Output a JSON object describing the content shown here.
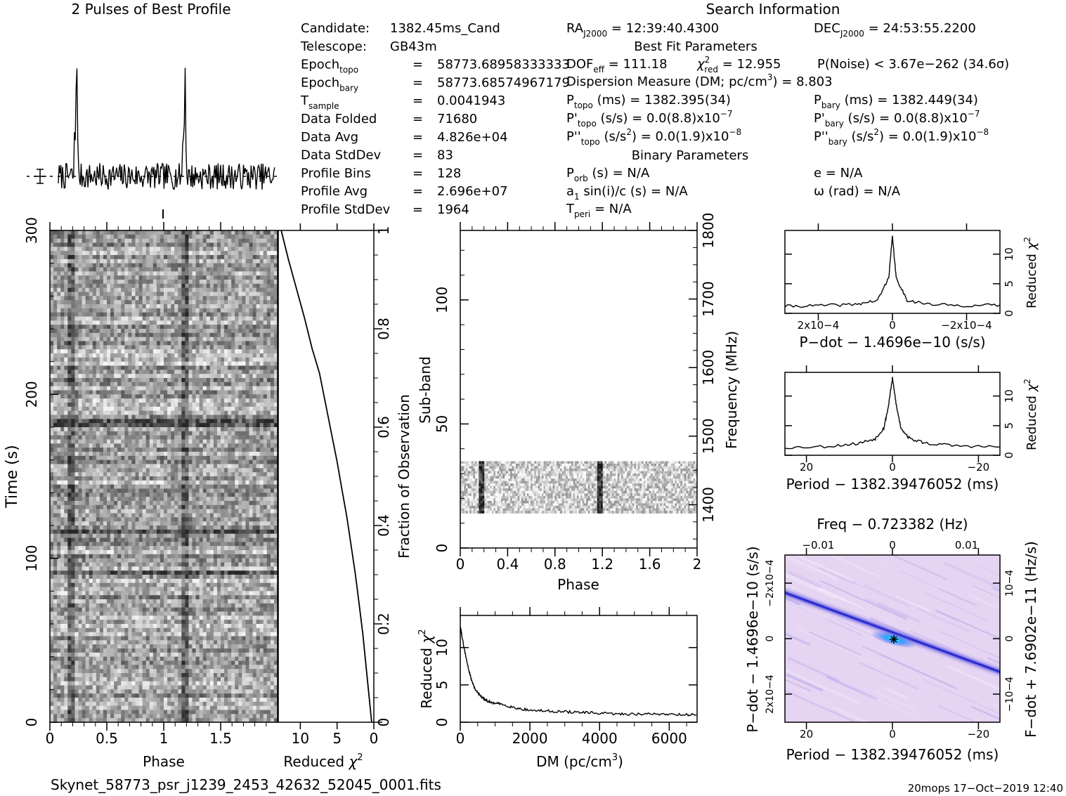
{
  "header": {
    "profile_title": "2 Pulses of Best Profile",
    "search_title": "Search Information",
    "best_fit_title": "Best Fit Parameters",
    "binary_title": "Binary Parameters"
  },
  "info_left": [
    {
      "key": "Candidate:",
      "sub": "",
      "eq": "",
      "val": "1382.45ms_Cand"
    },
    {
      "key": "Telescope:",
      "sub": "",
      "eq": "",
      "val": "GB43m"
    },
    {
      "key": "Epoch",
      "sub": "topo",
      "eq": "=",
      "val": "58773.68958333333"
    },
    {
      "key": "Epoch",
      "sub": "bary",
      "eq": "=",
      "val": "58773.68574967179"
    },
    {
      "key": "T",
      "sub": "sample",
      "eq": "=",
      "val": "0.0041943"
    },
    {
      "key": "Data Folded",
      "sub": "",
      "eq": "=",
      "val": "71680"
    },
    {
      "key": "Data Avg",
      "sub": "",
      "eq": "=",
      "val": "4.826e+04"
    },
    {
      "key": "Data StdDev",
      "sub": "",
      "eq": "=",
      "val": "83"
    },
    {
      "key": "Profile Bins",
      "sub": "",
      "eq": "=",
      "val": "128"
    },
    {
      "key": "Profile Avg",
      "sub": "",
      "eq": "=",
      "val": "2.696e+07"
    },
    {
      "key": "Profile StdDev",
      "sub": "",
      "eq": "=",
      "val": "1964"
    }
  ],
  "info_mid": {
    "ra": {
      "key": "RA",
      "sub": "J2000",
      "val": "= 12:39:40.4300"
    },
    "dof": {
      "key": "DOF",
      "sub": "eff",
      "val": "= 111.18"
    },
    "chi": {
      "sym": "χ",
      "sup": "2",
      "sub": "red",
      "val": "= 12.955"
    },
    "pnoise": "P(Noise) < 3.67e−262   (34.6σ)",
    "dm": {
      "text": "Dispersion Measure (DM; pc/cm",
      "sup": "3",
      "tail": ") = 8.803"
    },
    "ptopo": {
      "key": "P",
      "sub": "topo",
      "val": "(ms) =  1382.395(34)"
    },
    "pdtopo": {
      "key": "P'",
      "sub": "topo",
      "val": "(s/s) = 0.0(8.8)x10",
      "exp": "−7"
    },
    "pddtopo": {
      "key": "P''",
      "sub": "topo",
      "val": "(s/s",
      "sup": "2",
      "tail": ") = 0.0(1.9)x10",
      "exp": "−8"
    },
    "porb": {
      "key": "P",
      "sub": "orb",
      "val": "(s) = N/A"
    },
    "asini": {
      "key": "a",
      "sub": "1",
      "val": "sin(i)/c (s) = N/A"
    },
    "tperi": {
      "key": "T",
      "sub": "peri",
      "val": "= N/A"
    }
  },
  "info_right": {
    "dec": {
      "key": "DEC",
      "sub": "J2000",
      "val": "= 24:53:55.2200"
    },
    "pbary": {
      "key": "P",
      "sub": "bary",
      "val": "(ms) =  1382.449(34)"
    },
    "pdbary": {
      "key": "P'",
      "sub": "bary",
      "val": "(s/s) = 0.0(8.8)x10",
      "exp": "−7"
    },
    "pddbary": {
      "key": "P''",
      "sub": "bary",
      "val": "(s/s",
      "sup": "2",
      "tail": ") = 0.0(1.9)x10",
      "exp": "−8"
    },
    "e": "e = N/A",
    "omega": "ω (rad) = N/A"
  },
  "footer": {
    "filename": "Skynet_58773_psr_j1239_2453_42632_52045_0001.fits",
    "stamp": "20mops 17−Oct−2019 12:40"
  },
  "colors": {
    "ink": "#000000",
    "greyscale_dark": "#1a1a1a",
    "greyscale_light": "#e6e6e6",
    "ppdot_low": "#e6d2f2",
    "ppdot_mid": "#5a5ae6",
    "ppdot_peak": "#00ffff"
  },
  "chart_data": [
    {
      "type": "line",
      "id": "profile",
      "title": "2 Pulses of Best Profile",
      "xlabel": "",
      "ylabel": "",
      "x_range": [
        0,
        2
      ],
      "peaks_phase": [
        0.17,
        1.17
      ],
      "peak_relative_height": 1.0,
      "baseline": 0.0,
      "noise_rms": 0.03
    },
    {
      "type": "heatmap",
      "id": "time-phase",
      "xlabel": "Phase",
      "ylabel": "Time (s)",
      "x_ticks": [
        "0",
        "0.5",
        "1",
        "1.5"
      ],
      "x_range": [
        0,
        2
      ],
      "y_ticks": [
        "0",
        "100",
        "200",
        "300"
      ],
      "y_range": [
        0,
        300
      ],
      "pulse_phase": [
        0.17,
        1.17
      ]
    },
    {
      "type": "line",
      "id": "time-chi2",
      "xlabel": "Reduced χ2",
      "ylabel": "Fraction of Observation",
      "x_ticks": [
        "10",
        "5",
        "0"
      ],
      "x_range": [
        13.0,
        0.0
      ],
      "y_ticks": [
        "0",
        "0.2",
        "0.4",
        "0.6",
        "0.8",
        "1"
      ],
      "y_range": [
        0,
        1
      ],
      "x": [
        0.3,
        0.7,
        1.1,
        1.5,
        2.0,
        2.5,
        3.1,
        3.7,
        4.3,
        5.0,
        5.8,
        6.6,
        7.4,
        8.4,
        9.4,
        10.5,
        11.6,
        12.6
      ],
      "y": [
        0.0,
        0.06,
        0.12,
        0.18,
        0.24,
        0.3,
        0.36,
        0.42,
        0.47,
        0.53,
        0.59,
        0.65,
        0.71,
        0.76,
        0.82,
        0.88,
        0.94,
        1.0
      ]
    },
    {
      "type": "heatmap",
      "id": "subband-phase",
      "xlabel": "Phase",
      "ylabel": "Sub-band",
      "y2label": "Frequency (MHz)",
      "x_ticks": [
        "0",
        "0.4",
        "0.8",
        "1.2",
        "1.6",
        "2"
      ],
      "x_range": [
        0,
        2
      ],
      "y_ticks": [
        "0",
        "50",
        "100"
      ],
      "y_range": [
        0,
        128
      ],
      "y2_ticks": [
        "1400",
        "1500",
        "1600",
        "1700",
        "1800"
      ],
      "y2_range": [
        1336.9,
        1800
      ],
      "occupied_subbands": [
        14,
        35
      ],
      "pulse_phase": [
        0.17,
        1.17
      ]
    },
    {
      "type": "line",
      "id": "dm-chi2",
      "xlabel": "DM (pc/cm3)",
      "ylabel": "Reduced χ2",
      "x_ticks": [
        "0",
        "2000",
        "4000",
        "6000"
      ],
      "x_range": [
        0,
        6800
      ],
      "y_ticks": [
        "0",
        "5",
        "10"
      ],
      "y_range": [
        0,
        14.3
      ],
      "x": [
        0,
        100,
        200,
        300,
        400,
        500,
        700,
        900,
        1200,
        1600,
        2000,
        2500,
        3000,
        3500,
        4000,
        4500,
        5000,
        5500,
        6000,
        6500,
        6800
      ],
      "y": [
        12.9,
        10.1,
        7.9,
        6.0,
        4.7,
        3.9,
        3.0,
        2.6,
        2.4,
        1.9,
        1.6,
        1.5,
        1.4,
        1.3,
        1.2,
        1.1,
        1.1,
        1.1,
        1.1,
        1.0,
        1.0
      ]
    },
    {
      "type": "line",
      "id": "pdot-chi2",
      "xlabel": "P−dot − 1.4696e−10 (s/s)",
      "ylabel": "Reduced χ2",
      "x_tick_labels": [
        "2x10−4",
        "0",
        "−2x10−4"
      ],
      "x_range": [
        0.00029,
        -0.00029
      ],
      "y_ticks": [
        "0",
        "5",
        "10"
      ],
      "y_range": [
        0,
        14
      ],
      "x": [
        0.00029,
        0.0002,
        0.0001,
        4e-05,
        1e-05,
        0.0,
        -1e-05,
        -4e-05,
        -0.0001,
        -0.0002,
        -0.00029
      ],
      "y": [
        1.2,
        1.3,
        1.5,
        2.2,
        6.0,
        13.0,
        6.0,
        2.2,
        1.5,
        1.3,
        1.4
      ]
    },
    {
      "type": "line",
      "id": "period-chi2",
      "xlabel": "Period − 1382.39476052 (ms)",
      "ylabel": "Reduced χ2",
      "x_ticks": [
        "20",
        "0",
        "−20"
      ],
      "x_range": [
        25,
        -25
      ],
      "y_ticks": [
        "0",
        "5",
        "10"
      ],
      "y_range": [
        0,
        14
      ],
      "x": [
        25,
        15,
        8,
        4,
        2,
        1,
        0,
        -1,
        -2,
        -4,
        -8,
        -15,
        -25
      ],
      "y": [
        1.3,
        1.5,
        2.0,
        2.8,
        4.6,
        8.0,
        13.0,
        8.0,
        4.6,
        2.8,
        2.0,
        1.6,
        1.4
      ]
    },
    {
      "type": "heatmap",
      "id": "period-pdot",
      "xlabel": "Period − 1382.39476052 (ms)",
      "ylabel": "P−dot − 1.4696e−10 (s/s)",
      "x2label": "Freq − 0.723382 (Hz)",
      "y2label": "F−dot + 7.6902e−11 (Hz/s)",
      "x_ticks": [
        "20",
        "0",
        "−20"
      ],
      "x_range": [
        25,
        -25
      ],
      "x2_ticks": [
        "−0.01",
        "0",
        "0.01"
      ],
      "y_tick_labels": [
        "−2x10−4",
        "0",
        "2x10−4"
      ],
      "y2_tick_labels": [
        "10−4",
        "0",
        "−10−4"
      ],
      "best_fit": [
        0,
        0
      ]
    }
  ]
}
